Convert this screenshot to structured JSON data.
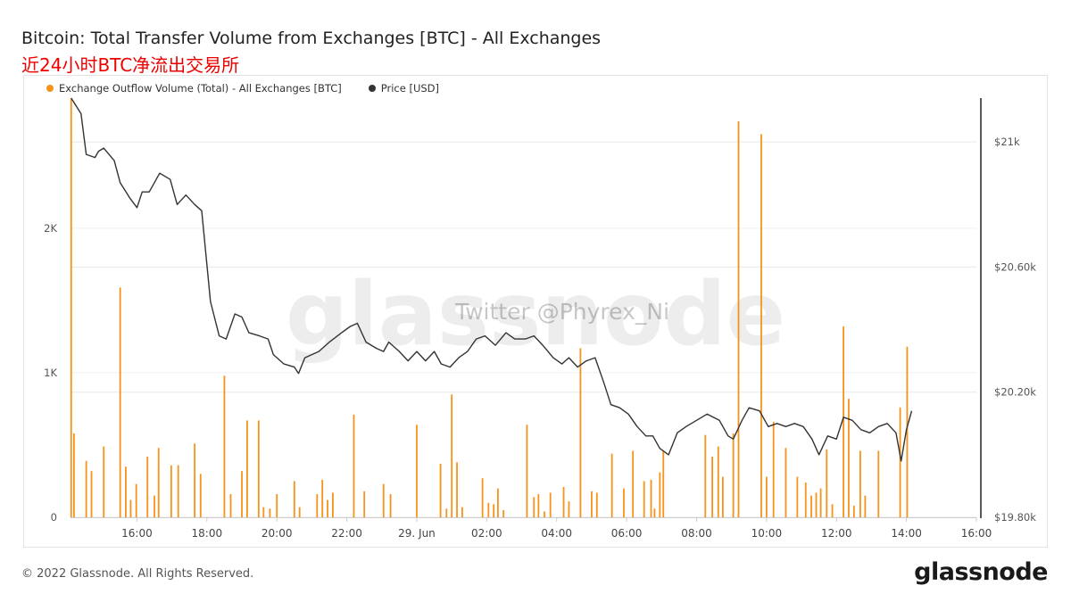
{
  "header": {
    "title": "Bitcoin: Total Transfer Volume from Exchanges [BTC] - All Exchanges",
    "subtitle": "近24小时BTC净流出交易所"
  },
  "watermark": {
    "brand": "glassnode",
    "overlay": "Twitter @Phyrex_Ni"
  },
  "footer": {
    "copyright": "© 2022 Glassnode. All Rights Reserved.",
    "logo": "glassnode"
  },
  "colors": {
    "outflow": "#f7931a",
    "price": "#333333",
    "grid": "#e8e8e8",
    "subtitle": "#ee0000"
  },
  "chart_data": {
    "type": "bar",
    "title": "Bitcoin: Total Transfer Volume from Exchanges [BTC] - All Exchanges",
    "legend_position": "top-left",
    "grid": true,
    "x_ticks": [
      {
        "hours": 16,
        "label": "16:00"
      },
      {
        "hours": 18,
        "label": "18:00"
      },
      {
        "hours": 20,
        "label": "20:00"
      },
      {
        "hours": 22,
        "label": "22:00"
      },
      {
        "hours": 24,
        "label": "29. Jun"
      },
      {
        "hours": 26,
        "label": "02:00"
      },
      {
        "hours": 28,
        "label": "04:00"
      },
      {
        "hours": 30,
        "label": "06:00"
      },
      {
        "hours": 32,
        "label": "08:00"
      },
      {
        "hours": 34,
        "label": "10:00"
      },
      {
        "hours": 36,
        "label": "12:00"
      },
      {
        "hours": 38,
        "label": "14:00"
      },
      {
        "hours": 40,
        "label": "16:00"
      }
    ],
    "xlim_hours": [
      14.1,
      40
    ],
    "y_left": {
      "ylim": [
        0,
        2900
      ],
      "ticks": [
        {
          "value": 0,
          "label": "0"
        },
        {
          "value": 1000,
          "label": "1K"
        },
        {
          "value": 2000,
          "label": "2K"
        }
      ]
    },
    "y_right": {
      "ylim": [
        19800,
        21140
      ],
      "ticks": [
        {
          "value": 19800,
          "label": "$19.80k"
        },
        {
          "value": 20200,
          "label": "$20.20k"
        },
        {
          "value": 20600,
          "label": "$20.60k"
        },
        {
          "value": 21000,
          "label": "$21k"
        }
      ]
    },
    "series": [
      {
        "name": "Exchange Outflow Volume (Total) - All Exchanges [BTC]",
        "type": "bar",
        "axis": "left",
        "color": "#f7931a",
        "points": [
          [
            14.12,
            2990
          ],
          [
            14.2,
            580
          ],
          [
            14.55,
            390
          ],
          [
            14.7,
            320
          ],
          [
            15.05,
            490
          ],
          [
            15.52,
            1590
          ],
          [
            15.68,
            350
          ],
          [
            15.82,
            120
          ],
          [
            15.98,
            230
          ],
          [
            16.3,
            420
          ],
          [
            16.5,
            150
          ],
          [
            16.62,
            480
          ],
          [
            16.98,
            360
          ],
          [
            17.18,
            360
          ],
          [
            17.65,
            510
          ],
          [
            17.82,
            300
          ],
          [
            18.5,
            980
          ],
          [
            18.68,
            160
          ],
          [
            19.0,
            320
          ],
          [
            19.15,
            670
          ],
          [
            19.48,
            670
          ],
          [
            19.62,
            70
          ],
          [
            19.8,
            60
          ],
          [
            20.0,
            160
          ],
          [
            20.5,
            250
          ],
          [
            20.65,
            70
          ],
          [
            21.15,
            160
          ],
          [
            21.3,
            260
          ],
          [
            21.45,
            120
          ],
          [
            21.6,
            170
          ],
          [
            22.2,
            710
          ],
          [
            22.5,
            180
          ],
          [
            23.05,
            230
          ],
          [
            23.25,
            160
          ],
          [
            24.0,
            640
          ],
          [
            24.68,
            370
          ],
          [
            24.85,
            60
          ],
          [
            25.0,
            850
          ],
          [
            25.15,
            380
          ],
          [
            25.3,
            70
          ],
          [
            25.88,
            270
          ],
          [
            26.05,
            100
          ],
          [
            26.2,
            90
          ],
          [
            26.32,
            200
          ],
          [
            26.48,
            50
          ],
          [
            27.15,
            640
          ],
          [
            27.35,
            140
          ],
          [
            27.48,
            160
          ],
          [
            27.65,
            40
          ],
          [
            27.82,
            170
          ],
          [
            28.2,
            210
          ],
          [
            28.35,
            110
          ],
          [
            28.68,
            1170
          ],
          [
            29.0,
            180
          ],
          [
            29.15,
            170
          ],
          [
            29.58,
            440
          ],
          [
            29.92,
            200
          ],
          [
            30.18,
            460
          ],
          [
            30.5,
            250
          ],
          [
            30.7,
            260
          ],
          [
            30.8,
            60
          ],
          [
            30.95,
            310
          ],
          [
            31.05,
            460
          ],
          [
            32.25,
            570
          ],
          [
            32.45,
            420
          ],
          [
            32.62,
            490
          ],
          [
            32.75,
            280
          ],
          [
            33.05,
            580
          ],
          [
            33.2,
            2740
          ],
          [
            33.85,
            2650
          ],
          [
            34.0,
            280
          ],
          [
            34.2,
            660
          ],
          [
            34.55,
            480
          ],
          [
            34.88,
            280
          ],
          [
            35.12,
            240
          ],
          [
            35.28,
            150
          ],
          [
            35.42,
            170
          ],
          [
            35.55,
            200
          ],
          [
            35.72,
            470
          ],
          [
            35.88,
            90
          ],
          [
            36.2,
            1320
          ],
          [
            36.35,
            820
          ],
          [
            36.5,
            80
          ],
          [
            36.68,
            460
          ],
          [
            36.82,
            150
          ],
          [
            37.2,
            460
          ],
          [
            37.82,
            760
          ],
          [
            38.02,
            1180
          ]
        ]
      },
      {
        "name": "Price [USD]",
        "type": "line",
        "axis": "right",
        "color": "#333333",
        "points": [
          [
            14.12,
            21200
          ],
          [
            14.4,
            21090
          ],
          [
            14.55,
            20960
          ],
          [
            14.8,
            20950
          ],
          [
            14.9,
            20970
          ],
          [
            15.05,
            20980
          ],
          [
            15.35,
            20940
          ],
          [
            15.52,
            20870
          ],
          [
            15.8,
            20820
          ],
          [
            16.0,
            20790
          ],
          [
            16.15,
            20840
          ],
          [
            16.35,
            20840
          ],
          [
            16.65,
            20900
          ],
          [
            16.95,
            20880
          ],
          [
            17.15,
            20800
          ],
          [
            17.4,
            20830
          ],
          [
            17.65,
            20800
          ],
          [
            17.85,
            20780
          ],
          [
            18.1,
            20490
          ],
          [
            18.35,
            20380
          ],
          [
            18.55,
            20370
          ],
          [
            18.8,
            20450
          ],
          [
            19.0,
            20440
          ],
          [
            19.2,
            20390
          ],
          [
            19.5,
            20380
          ],
          [
            19.75,
            20370
          ],
          [
            19.9,
            20320
          ],
          [
            20.2,
            20290
          ],
          [
            20.5,
            20280
          ],
          [
            20.62,
            20260
          ],
          [
            20.8,
            20310
          ],
          [
            21.2,
            20330
          ],
          [
            21.5,
            20360
          ],
          [
            21.85,
            20390
          ],
          [
            22.1,
            20410
          ],
          [
            22.3,
            20420
          ],
          [
            22.55,
            20360
          ],
          [
            22.85,
            20340
          ],
          [
            23.05,
            20330
          ],
          [
            23.2,
            20360
          ],
          [
            23.5,
            20330
          ],
          [
            23.75,
            20300
          ],
          [
            24.0,
            20330
          ],
          [
            24.25,
            20300
          ],
          [
            24.5,
            20330
          ],
          [
            24.7,
            20290
          ],
          [
            24.95,
            20280
          ],
          [
            25.2,
            20310
          ],
          [
            25.45,
            20330
          ],
          [
            25.7,
            20370
          ],
          [
            25.95,
            20380
          ],
          [
            26.25,
            20350
          ],
          [
            26.55,
            20390
          ],
          [
            26.8,
            20370
          ],
          [
            27.1,
            20370
          ],
          [
            27.35,
            20380
          ],
          [
            27.6,
            20350
          ],
          [
            27.9,
            20310
          ],
          [
            28.15,
            20290
          ],
          [
            28.35,
            20310
          ],
          [
            28.6,
            20280
          ],
          [
            28.85,
            20300
          ],
          [
            29.1,
            20310
          ],
          [
            29.35,
            20230
          ],
          [
            29.55,
            20160
          ],
          [
            29.8,
            20150
          ],
          [
            30.05,
            20130
          ],
          [
            30.3,
            20090
          ],
          [
            30.55,
            20060
          ],
          [
            30.75,
            20060
          ],
          [
            30.95,
            20020
          ],
          [
            31.2,
            20000
          ],
          [
            31.45,
            20070
          ],
          [
            31.7,
            20090
          ],
          [
            32.0,
            20110
          ],
          [
            32.3,
            20130
          ],
          [
            32.65,
            20110
          ],
          [
            32.9,
            20060
          ],
          [
            33.05,
            20050
          ],
          [
            33.3,
            20110
          ],
          [
            33.5,
            20150
          ],
          [
            33.8,
            20140
          ],
          [
            34.05,
            20090
          ],
          [
            34.3,
            20100
          ],
          [
            34.55,
            20090
          ],
          [
            34.8,
            20100
          ],
          [
            35.05,
            20090
          ],
          [
            35.3,
            20050
          ],
          [
            35.5,
            20000
          ],
          [
            35.75,
            20060
          ],
          [
            36.0,
            20050
          ],
          [
            36.2,
            20120
          ],
          [
            36.45,
            20110
          ],
          [
            36.7,
            20080
          ],
          [
            36.95,
            20070
          ],
          [
            37.2,
            20090
          ],
          [
            37.45,
            20100
          ],
          [
            37.7,
            20070
          ],
          [
            37.85,
            19980
          ],
          [
            38.0,
            20080
          ],
          [
            38.15,
            20140
          ]
        ]
      }
    ]
  }
}
